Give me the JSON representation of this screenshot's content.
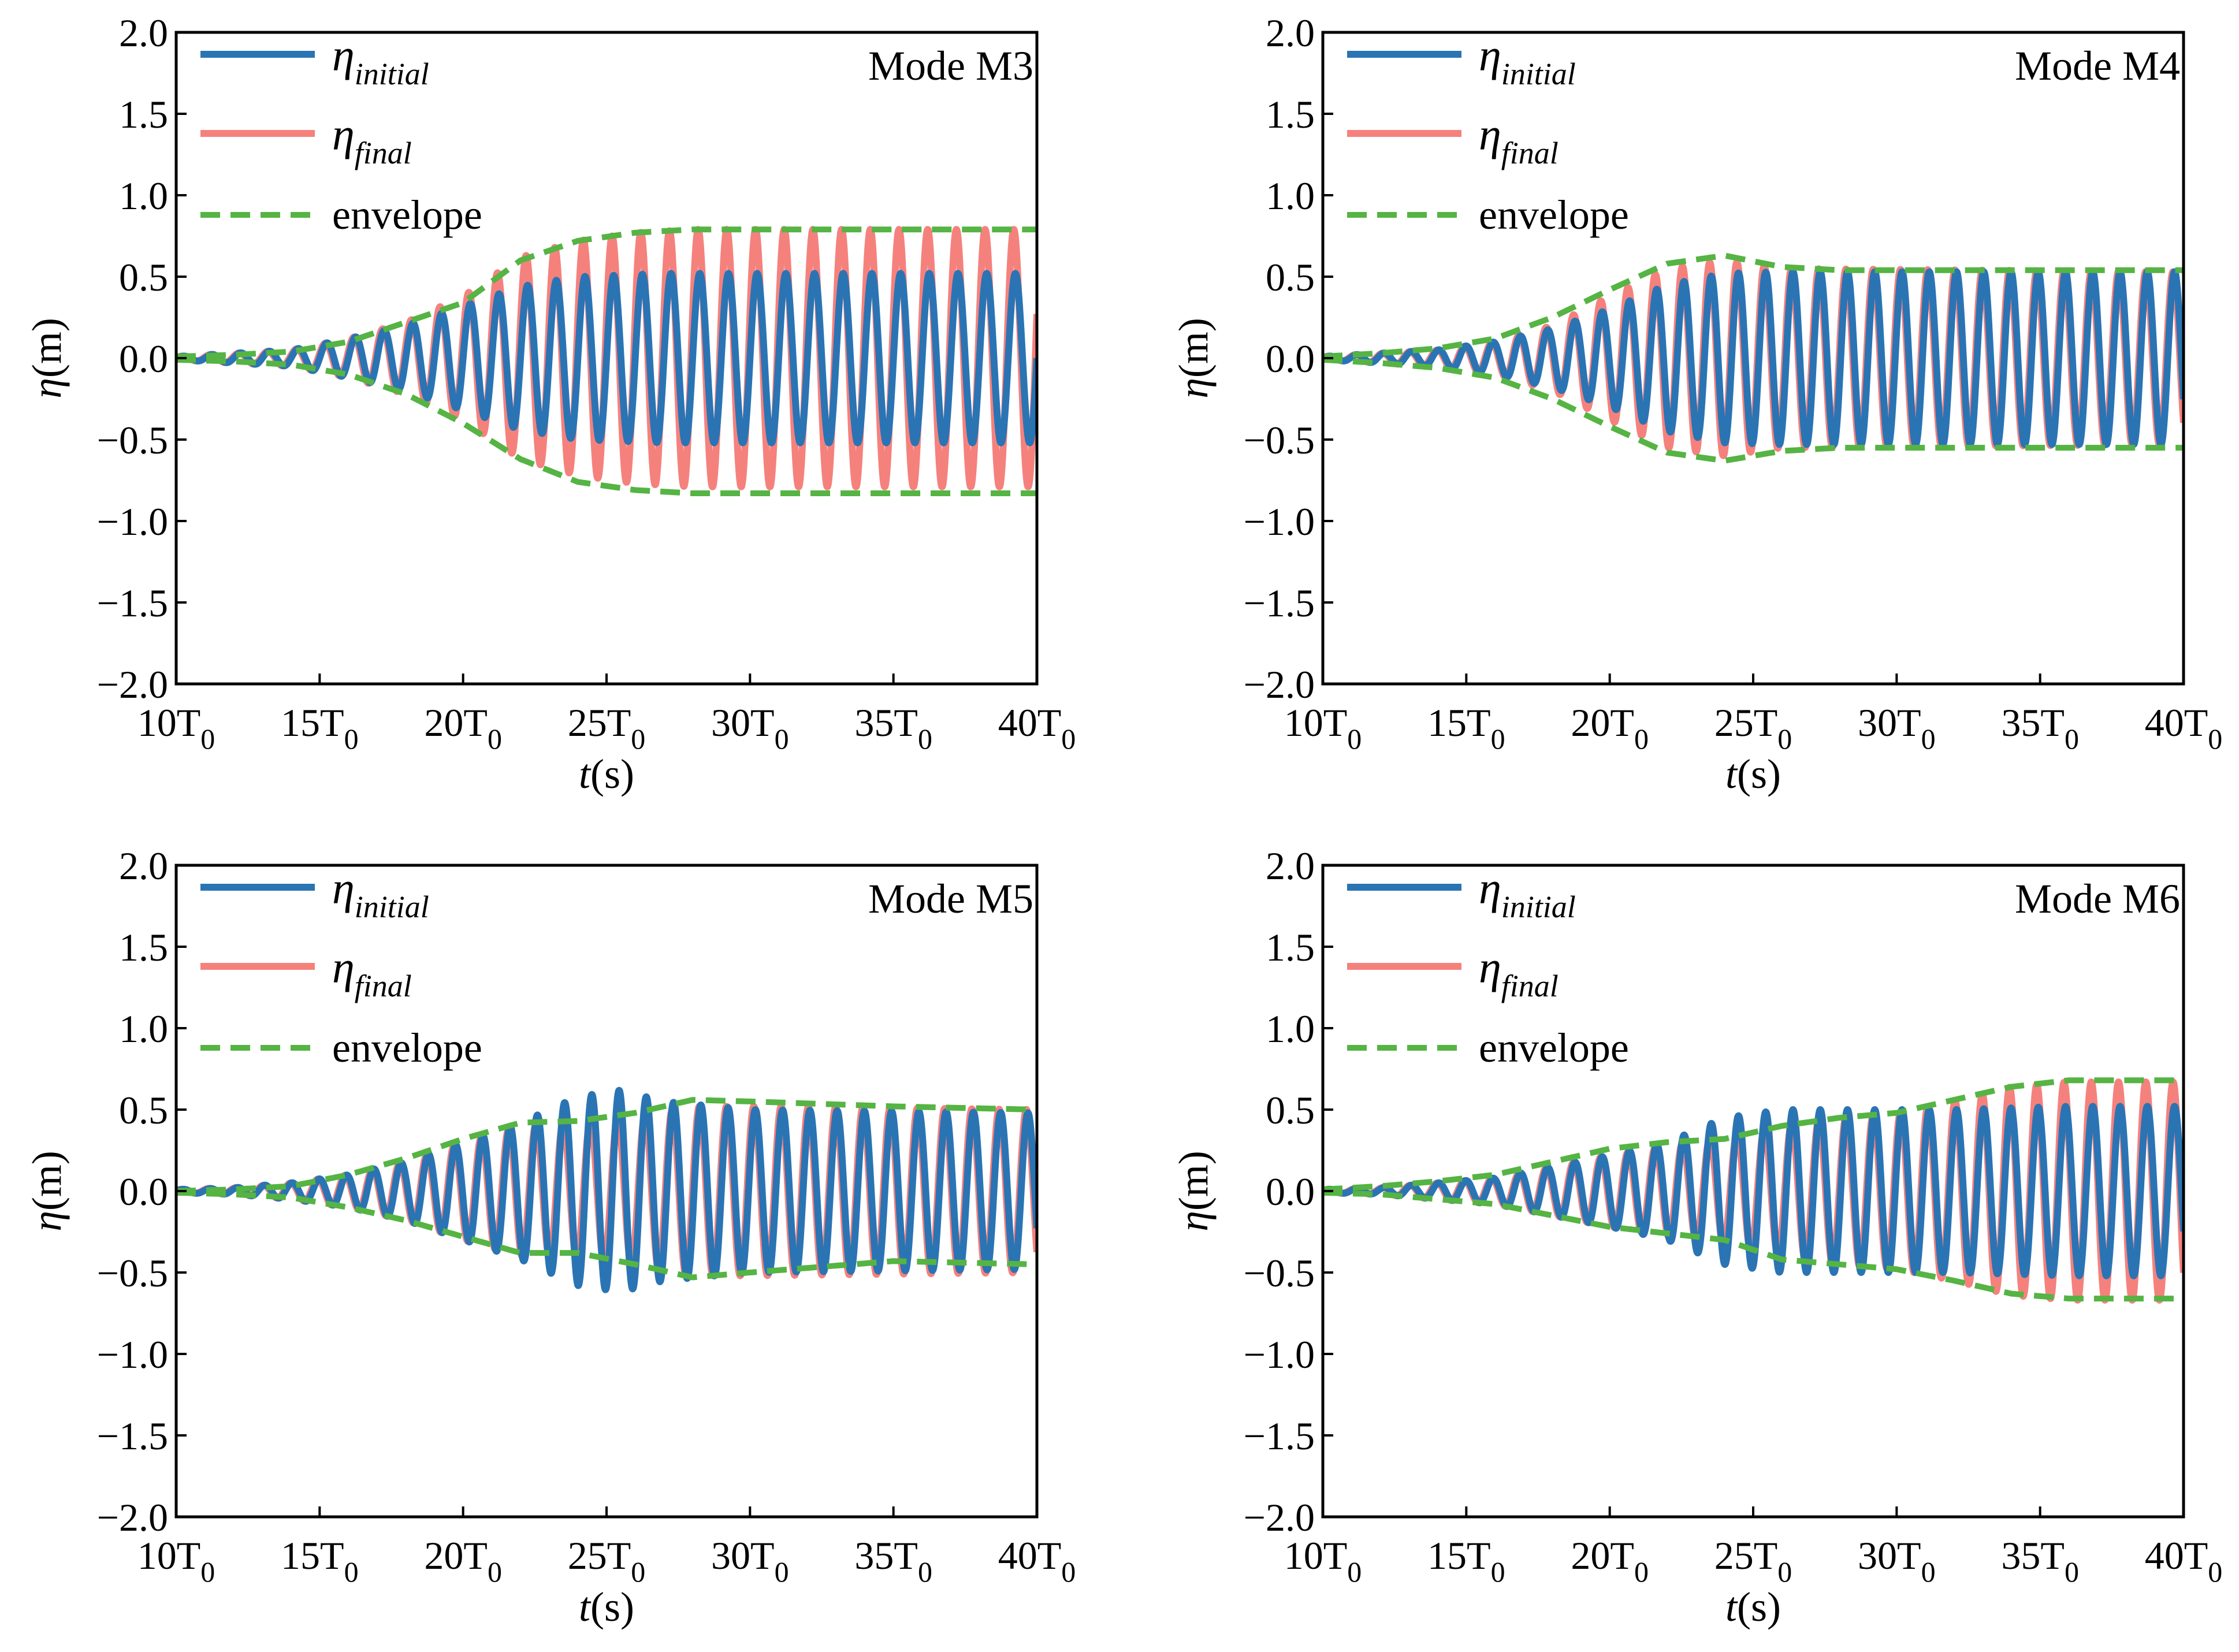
{
  "figure": {
    "colors": {
      "initial": "#2a74b4",
      "final": "#f5817d",
      "envelope": "#55b443",
      "axis": "#000000"
    },
    "eta_symbol": "η",
    "t_symbol": "t"
  },
  "chart_data": [
    {
      "type": "line",
      "title": "Mode M3",
      "xlabel": "t(s)",
      "ylabel": "η(m)",
      "xlim": [
        10,
        40
      ],
      "ylim": [
        -2.0,
        2.0
      ],
      "x_unit": "T0",
      "xticks": [
        10,
        15,
        20,
        25,
        30,
        35,
        40
      ],
      "xtick_labels": [
        "10T0",
        "15T0",
        "20T0",
        "25T0",
        "30T0",
        "35T0",
        "40T0"
      ],
      "yticks": [
        -2.0,
        -1.5,
        -1.0,
        -0.5,
        0.0,
        0.5,
        1.0,
        1.5,
        2.0
      ],
      "ytick_labels": [
        "−2.0",
        "−1.5",
        "−1.0",
        "−0.5",
        "0.0",
        "0.5",
        "1.0",
        "1.5",
        "2.0"
      ],
      "legend_position": "top-left",
      "series": [
        {
          "name": "η_initial",
          "label_main": "η",
          "label_sub": "initial",
          "style": "solid",
          "oscillation_period_T0": 1.0,
          "amplitude_envelope": [
            [
              10,
              0.01
            ],
            [
              12,
              0.03
            ],
            [
              14,
              0.05
            ],
            [
              16,
              0.12
            ],
            [
              18,
              0.2
            ],
            [
              20,
              0.32
            ],
            [
              22,
              0.44
            ],
            [
              24,
              0.5
            ],
            [
              27,
              0.52
            ],
            [
              40,
              0.52
            ]
          ]
        },
        {
          "name": "η_final",
          "label_main": "η",
          "label_sub": "final",
          "style": "solid",
          "oscillation_period_T0": 1.0,
          "amplitude_envelope": [
            [
              10,
              0.01
            ],
            [
              12,
              0.03
            ],
            [
              14,
              0.05
            ],
            [
              16,
              0.12
            ],
            [
              18,
              0.22
            ],
            [
              20,
              0.38
            ],
            [
              22,
              0.62
            ],
            [
              24,
              0.72
            ],
            [
              26,
              0.77
            ],
            [
              28,
              0.79
            ],
            [
              40,
              0.79
            ]
          ]
        },
        {
          "name": "envelope",
          "label_main": "envelope",
          "style": "dashed",
          "upper": [
            [
              10,
              0.01
            ],
            [
              12,
              0.02
            ],
            [
              14,
              0.04
            ],
            [
              16,
              0.1
            ],
            [
              18,
              0.22
            ],
            [
              20,
              0.34
            ],
            [
              22,
              0.6
            ],
            [
              24,
              0.72
            ],
            [
              26,
              0.77
            ],
            [
              28,
              0.79
            ],
            [
              40,
              0.79
            ]
          ],
          "lower": [
            [
              10,
              -0.01
            ],
            [
              12,
              -0.02
            ],
            [
              14,
              -0.04
            ],
            [
              16,
              -0.1
            ],
            [
              18,
              -0.22
            ],
            [
              20,
              -0.4
            ],
            [
              22,
              -0.62
            ],
            [
              24,
              -0.76
            ],
            [
              26,
              -0.81
            ],
            [
              28,
              -0.83
            ],
            [
              40,
              -0.83
            ]
          ]
        }
      ]
    },
    {
      "type": "line",
      "title": "Mode M4",
      "xlabel": "t(s)",
      "ylabel": "η(m)",
      "xlim": [
        10,
        40
      ],
      "ylim": [
        -2.0,
        2.0
      ],
      "x_unit": "T0",
      "xticks": [
        10,
        15,
        20,
        25,
        30,
        35,
        40
      ],
      "xtick_labels": [
        "10T0",
        "15T0",
        "20T0",
        "25T0",
        "30T0",
        "35T0",
        "40T0"
      ],
      "yticks": [
        -2.0,
        -1.5,
        -1.0,
        -0.5,
        0.0,
        0.5,
        1.0,
        1.5,
        2.0
      ],
      "ytick_labels": [
        "−2.0",
        "−1.5",
        "−1.0",
        "−0.5",
        "0.0",
        "0.5",
        "1.0",
        "1.5",
        "2.0"
      ],
      "legend_position": "top-left",
      "series": [
        {
          "name": "η_initial",
          "label_main": "η",
          "label_sub": "initial",
          "style": "solid",
          "oscillation_period_T0": 0.95,
          "amplitude_envelope": [
            [
              10,
              0.01
            ],
            [
              12,
              0.03
            ],
            [
              14,
              0.05
            ],
            [
              16,
              0.1
            ],
            [
              18,
              0.18
            ],
            [
              20,
              0.3
            ],
            [
              22,
              0.45
            ],
            [
              24,
              0.52
            ],
            [
              26,
              0.53
            ],
            [
              40,
              0.53
            ]
          ]
        },
        {
          "name": "η_final",
          "label_main": "η",
          "label_sub": "final",
          "style": "solid",
          "oscillation_period_T0": 0.95,
          "amplitude_envelope": [
            [
              10,
              0.01
            ],
            [
              12,
              0.03
            ],
            [
              14,
              0.05
            ],
            [
              16,
              0.1
            ],
            [
              18,
              0.2
            ],
            [
              20,
              0.38
            ],
            [
              22,
              0.55
            ],
            [
              24,
              0.6
            ],
            [
              26,
              0.55
            ],
            [
              40,
              0.53
            ]
          ]
        },
        {
          "name": "envelope",
          "label_main": "envelope",
          "style": "dashed",
          "upper": [
            [
              10,
              0.01
            ],
            [
              12,
              0.03
            ],
            [
              14,
              0.06
            ],
            [
              16,
              0.12
            ],
            [
              18,
              0.25
            ],
            [
              20,
              0.42
            ],
            [
              22,
              0.58
            ],
            [
              24,
              0.63
            ],
            [
              26,
              0.56
            ],
            [
              28,
              0.54
            ],
            [
              40,
              0.54
            ]
          ],
          "lower": [
            [
              10,
              -0.01
            ],
            [
              12,
              -0.03
            ],
            [
              14,
              -0.06
            ],
            [
              16,
              -0.12
            ],
            [
              18,
              -0.25
            ],
            [
              20,
              -0.42
            ],
            [
              22,
              -0.58
            ],
            [
              24,
              -0.63
            ],
            [
              26,
              -0.57
            ],
            [
              28,
              -0.55
            ],
            [
              40,
              -0.55
            ]
          ]
        }
      ]
    },
    {
      "type": "line",
      "title": "Mode M5",
      "xlabel": "t(s)",
      "ylabel": "η(m)",
      "xlim": [
        10,
        40
      ],
      "ylim": [
        -2.0,
        2.0
      ],
      "x_unit": "T0",
      "xticks": [
        10,
        15,
        20,
        25,
        30,
        35,
        40
      ],
      "xtick_labels": [
        "10T0",
        "15T0",
        "20T0",
        "25T0",
        "30T0",
        "35T0",
        "40T0"
      ],
      "yticks": [
        -2.0,
        -1.5,
        -1.0,
        -0.5,
        0.0,
        0.5,
        1.0,
        1.5,
        2.0
      ],
      "ytick_labels": [
        "−2.0",
        "−1.5",
        "−1.0",
        "−0.5",
        "0.0",
        "0.5",
        "1.0",
        "1.5",
        "2.0"
      ],
      "legend_position": "top-left",
      "series": [
        {
          "name": "η_initial",
          "label_main": "η",
          "label_sub": "initial",
          "style": "solid",
          "oscillation_period_T0": 0.95,
          "amplitude_envelope": [
            [
              10,
              0.01
            ],
            [
              12,
              0.02
            ],
            [
              14,
              0.05
            ],
            [
              16,
              0.1
            ],
            [
              18,
              0.18
            ],
            [
              20,
              0.3
            ],
            [
              22,
              0.42
            ],
            [
              24,
              0.58
            ],
            [
              25.5,
              0.62
            ],
            [
              27,
              0.55
            ],
            [
              30,
              0.5
            ],
            [
              40,
              0.48
            ]
          ]
        },
        {
          "name": "η_final",
          "label_main": "η",
          "label_sub": "final",
          "style": "solid",
          "oscillation_period_T0": 0.95,
          "amplitude_envelope": [
            [
              10,
              0.01
            ],
            [
              12,
              0.02
            ],
            [
              14,
              0.05
            ],
            [
              16,
              0.1
            ],
            [
              18,
              0.18
            ],
            [
              20,
              0.3
            ],
            [
              22,
              0.4
            ],
            [
              24,
              0.42
            ],
            [
              26,
              0.45
            ],
            [
              28,
              0.52
            ],
            [
              30,
              0.52
            ],
            [
              40,
              0.5
            ]
          ]
        },
        {
          "name": "envelope",
          "label_main": "envelope",
          "style": "dashed",
          "upper": [
            [
              10,
              0.0
            ],
            [
              12,
              0.01
            ],
            [
              14,
              0.03
            ],
            [
              16,
              0.1
            ],
            [
              18,
              0.2
            ],
            [
              20,
              0.32
            ],
            [
              22,
              0.42
            ],
            [
              24,
              0.43
            ],
            [
              26,
              0.48
            ],
            [
              28,
              0.56
            ],
            [
              30,
              0.55
            ],
            [
              35,
              0.52
            ],
            [
              40,
              0.5
            ]
          ],
          "lower": [
            [
              10,
              -0.01
            ],
            [
              12,
              -0.02
            ],
            [
              14,
              -0.04
            ],
            [
              16,
              -0.1
            ],
            [
              18,
              -0.18
            ],
            [
              20,
              -0.28
            ],
            [
              22,
              -0.38
            ],
            [
              24,
              -0.38
            ],
            [
              26,
              -0.45
            ],
            [
              28,
              -0.53
            ],
            [
              30,
              -0.5
            ],
            [
              35,
              -0.43
            ],
            [
              40,
              -0.45
            ]
          ]
        }
      ]
    },
    {
      "type": "line",
      "title": "Mode M6",
      "xlabel": "t(s)",
      "ylabel": "η(m)",
      "xlim": [
        10,
        40
      ],
      "ylim": [
        -2.0,
        2.0
      ],
      "x_unit": "T0",
      "xticks": [
        10,
        15,
        20,
        25,
        30,
        35,
        40
      ],
      "xtick_labels": [
        "10T0",
        "15T0",
        "20T0",
        "25T0",
        "30T0",
        "35T0",
        "40T0"
      ],
      "yticks": [
        -2.0,
        -1.5,
        -1.0,
        -0.5,
        0.0,
        0.5,
        1.0,
        1.5,
        2.0
      ],
      "ytick_labels": [
        "−2.0",
        "−1.5",
        "−1.0",
        "−0.5",
        "0.0",
        "0.5",
        "1.0",
        "1.5",
        "2.0"
      ],
      "legend_position": "top-left",
      "series": [
        {
          "name": "η_initial",
          "label_main": "η",
          "label_sub": "initial",
          "style": "solid",
          "oscillation_period_T0": 0.95,
          "amplitude_envelope": [
            [
              10,
              0.01
            ],
            [
              12,
              0.02
            ],
            [
              14,
              0.05
            ],
            [
              16,
              0.08
            ],
            [
              18,
              0.15
            ],
            [
              20,
              0.22
            ],
            [
              22,
              0.3
            ],
            [
              24,
              0.45
            ],
            [
              26,
              0.5
            ],
            [
              28,
              0.5
            ],
            [
              32,
              0.5
            ],
            [
              36,
              0.52
            ],
            [
              40,
              0.52
            ]
          ]
        },
        {
          "name": "η_final",
          "label_main": "η",
          "label_sub": "final",
          "style": "solid",
          "oscillation_period_T0": 0.95,
          "amplitude_envelope": [
            [
              10,
              0.01
            ],
            [
              12,
              0.02
            ],
            [
              14,
              0.05
            ],
            [
              16,
              0.08
            ],
            [
              18,
              0.15
            ],
            [
              20,
              0.22
            ],
            [
              22,
              0.28
            ],
            [
              24,
              0.33
            ],
            [
              26,
              0.4
            ],
            [
              28,
              0.45
            ],
            [
              30,
              0.48
            ],
            [
              32,
              0.55
            ],
            [
              34,
              0.64
            ],
            [
              36,
              0.67
            ],
            [
              40,
              0.67
            ]
          ]
        },
        {
          "name": "envelope",
          "label_main": "envelope",
          "style": "dashed",
          "upper": [
            [
              10,
              0.01
            ],
            [
              12,
              0.03
            ],
            [
              14,
              0.06
            ],
            [
              16,
              0.1
            ],
            [
              18,
              0.18
            ],
            [
              20,
              0.26
            ],
            [
              22,
              0.3
            ],
            [
              24,
              0.32
            ],
            [
              26,
              0.4
            ],
            [
              28,
              0.45
            ],
            [
              30,
              0.48
            ],
            [
              32,
              0.56
            ],
            [
              34,
              0.64
            ],
            [
              36,
              0.68
            ],
            [
              40,
              0.68
            ]
          ],
          "lower": [
            [
              10,
              -0.01
            ],
            [
              12,
              -0.02
            ],
            [
              14,
              -0.05
            ],
            [
              16,
              -0.08
            ],
            [
              18,
              -0.15
            ],
            [
              20,
              -0.22
            ],
            [
              22,
              -0.26
            ],
            [
              24,
              -0.3
            ],
            [
              26,
              -0.42
            ],
            [
              28,
              -0.45
            ],
            [
              30,
              -0.48
            ],
            [
              32,
              -0.55
            ],
            [
              34,
              -0.63
            ],
            [
              36,
              -0.66
            ],
            [
              40,
              -0.66
            ]
          ]
        }
      ]
    }
  ]
}
